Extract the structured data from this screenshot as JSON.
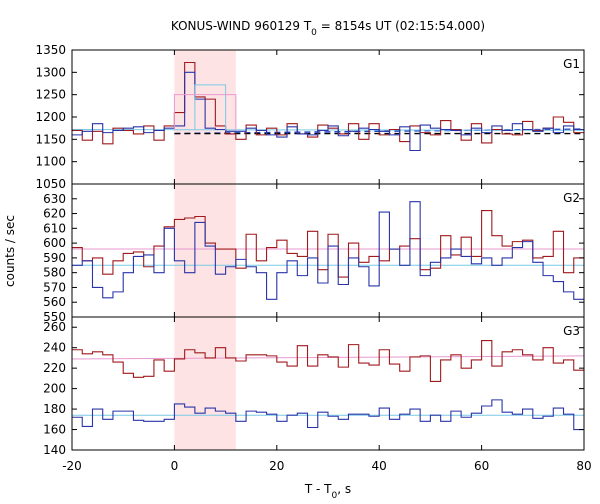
{
  "title_main": "KONUS-WIND 960129 T",
  "title_sub": "0",
  "title_rest": " = 8154s UT (02:15:54.000)",
  "ylabel": "counts / sec",
  "xlabel_main": "T - T",
  "xlabel_sub": "0",
  "xlabel_rest": ", s",
  "chart_data": {
    "type": "line",
    "step": true,
    "x_range": [
      -20,
      80
    ],
    "x_ticks": [
      -20,
      0,
      20,
      40,
      60,
      80
    ],
    "x_tick_labels": [
      "-20",
      "0",
      "20",
      "40",
      "60",
      "80"
    ],
    "highlight_interval": [
      0,
      12
    ],
    "colors": {
      "dark_red": "#a0191d",
      "blue": "#2a34a8",
      "light_blue": "#79c9e6",
      "pink": "#e89ad0",
      "highlight": "#fde3e3",
      "fit_dashed_blue": "#1a44c8",
      "fit_dashed_black": "#000000"
    },
    "panels": [
      {
        "label": "G1",
        "ylim": [
          1050,
          1350
        ],
        "y_ticks": [
          1050,
          1100,
          1150,
          1200,
          1250,
          1300,
          1350
        ],
        "bin_edges": [
          -20,
          -18,
          -16,
          -14,
          -12,
          -10,
          -8,
          -6,
          -4,
          -2,
          0,
          2,
          4,
          6,
          8,
          10,
          12,
          14,
          16,
          18,
          20,
          22,
          24,
          26,
          28,
          30,
          32,
          34,
          36,
          38,
          40,
          42,
          44,
          46,
          48,
          50,
          52,
          54,
          56,
          58,
          60,
          62,
          64,
          66,
          68,
          70,
          72,
          74,
          76,
          78,
          80
        ],
        "series": [
          {
            "color_key": "dark_red",
            "values": [
              1170,
              1148,
              1168,
              1140,
              1175,
              1170,
              1162,
              1180,
              1148,
              1180,
              1210,
              1322,
              1245,
              1240,
              1180,
              1162,
              1150,
              1182,
              1160,
              1175,
              1160,
              1185,
              1162,
              1155,
              1182,
              1175,
              1162,
              1185,
              1150,
              1185,
              1160,
              1172,
              1145,
              1180,
              1165,
              1160,
              1192,
              1172,
              1148,
              1185,
              1142,
              1172,
              1162,
              1160,
              1190,
              1170,
              1175,
              1200,
              1188,
              1165
            ]
          },
          {
            "color_key": "blue",
            "values": [
              1160,
              1168,
              1185,
              1165,
              1170,
              1175,
              1178,
              1165,
              1170,
              1175,
              1180,
              1300,
              1240,
              1175,
              1172,
              1168,
              1168,
              1175,
              1170,
              1160,
              1155,
              1178,
              1162,
              1160,
              1170,
              1180,
              1158,
              1168,
              1175,
              1172,
              1168,
              1160,
              1178,
              1125,
              1182,
              1175,
              1172,
              1170,
              1160,
              1175,
              1165,
              1180,
              1170,
              1185,
              1172,
              1168,
              1175,
              1165,
              1180,
              1172
            ]
          },
          {
            "color_key": "light_blue",
            "step_box": {
              "x": [
                4,
                10
              ],
              "y": 1272,
              "base": 1170
            }
          },
          {
            "color_key": "pink",
            "step_box": {
              "x": [
                0,
                12
              ],
              "y": 1250,
              "base": 1170
            }
          }
        ],
        "fits": [
          {
            "color_key": "fit_dashed_blue",
            "dashed": true,
            "from": [
              0,
              1163
            ],
            "to": [
              80,
              1173
            ]
          },
          {
            "color_key": "light_blue",
            "dashed": false,
            "from": [
              -20,
              1172
            ],
            "to": [
              80,
              1170
            ]
          },
          {
            "color_key": "fit_dashed_black",
            "dashed": true,
            "from": [
              0,
              1163
            ],
            "to": [
              80,
              1163
            ]
          }
        ]
      },
      {
        "label": "G2",
        "ylim": [
          550,
          640
        ],
        "y_ticks": [
          550,
          560,
          570,
          580,
          590,
          600,
          610,
          620,
          630
        ],
        "bin_edges": [
          -20,
          -18,
          -16,
          -14,
          -12,
          -10,
          -8,
          -6,
          -4,
          -2,
          0,
          2,
          4,
          6,
          8,
          10,
          12,
          14,
          16,
          18,
          20,
          22,
          24,
          26,
          28,
          30,
          32,
          34,
          36,
          38,
          40,
          42,
          44,
          46,
          48,
          50,
          52,
          54,
          56,
          58,
          60,
          62,
          64,
          66,
          68,
          70,
          72,
          74,
          76,
          78,
          80
        ],
        "series": [
          {
            "color_key": "dark_red",
            "values": [
              597,
              588,
              590,
              579,
              588,
              593,
              594,
              584,
              598,
              611,
              616,
              617,
              618,
              600,
              596,
              596,
              583,
              606,
              588,
              597,
              602,
              593,
              591,
              608,
              582,
              606,
              577,
              600,
              587,
              591,
              588,
              596,
              598,
              603,
              582,
              583,
              605,
              592,
              604,
              591,
              622,
              605,
              598,
              601,
              602,
              590,
              591,
              608,
              580,
              590
            ]
          },
          {
            "color_key": "blue",
            "values": [
              585,
              588,
              570,
              563,
              567,
              580,
              591,
              592,
              580,
              610,
              588,
              580,
              614,
              598,
              579,
              584,
              589,
              584,
              580,
              562,
              580,
              588,
              578,
              590,
              573,
              598,
              572,
              590,
              584,
              571,
              621,
              596,
              585,
              628,
              578,
              587,
              590,
              596,
              591,
              586,
              590,
              585,
              590,
              597,
              601,
              587,
              578,
              574,
              567,
              562
            ]
          }
        ],
        "fits": [
          {
            "color_key": "pink",
            "dashed": false,
            "from": [
              -20,
              596
            ],
            "to": [
              80,
              596
            ]
          },
          {
            "color_key": "light_blue",
            "dashed": false,
            "from": [
              -20,
              585
            ],
            "to": [
              80,
              585
            ]
          }
        ]
      },
      {
        "label": "G3",
        "ylim": [
          140,
          270
        ],
        "y_ticks": [
          140,
          160,
          180,
          200,
          220,
          240,
          260
        ],
        "bin_edges": [
          -20,
          -18,
          -16,
          -14,
          -12,
          -10,
          -8,
          -6,
          -4,
          -2,
          0,
          2,
          4,
          6,
          8,
          10,
          12,
          14,
          16,
          18,
          20,
          22,
          24,
          26,
          28,
          30,
          32,
          34,
          36,
          38,
          40,
          42,
          44,
          46,
          48,
          50,
          52,
          54,
          56,
          58,
          60,
          62,
          64,
          66,
          68,
          70,
          72,
          74,
          76,
          78,
          80
        ],
        "series": [
          {
            "color_key": "dark_red",
            "values": [
              238,
              234,
              236,
              233,
              226,
              215,
              211,
              212,
              228,
              217,
              229,
              238,
              235,
              230,
              240,
              230,
              227,
              233,
              233,
              232,
              226,
              222,
              242,
              222,
              233,
              231,
              221,
              243,
              225,
              223,
              238,
              224,
              217,
              231,
              232,
              207,
              228,
              233,
              220,
              228,
              247,
              222,
              236,
              238,
              233,
              228,
              240,
              225,
              228,
              218
            ]
          },
          {
            "color_key": "blue",
            "values": [
              172,
              163,
              180,
              170,
              178,
              178,
              169,
              168,
              168,
              170,
              185,
              182,
              176,
              181,
              178,
              176,
              168,
              178,
              177,
              175,
              168,
              174,
              176,
              162,
              177,
              173,
              170,
              175,
              175,
              173,
              181,
              170,
              175,
              180,
              168,
              174,
              168,
              178,
              172,
              176,
              183,
              189,
              177,
              175,
              180,
              171,
              173,
              181,
              175,
              160
            ]
          }
        ],
        "fits": [
          {
            "color_key": "pink",
            "dashed": false,
            "from": [
              -20,
              229
            ],
            "to": [
              80,
              232
            ]
          },
          {
            "color_key": "light_blue",
            "dashed": false,
            "from": [
              -20,
              174
            ],
            "to": [
              80,
              174
            ]
          }
        ]
      }
    ]
  }
}
